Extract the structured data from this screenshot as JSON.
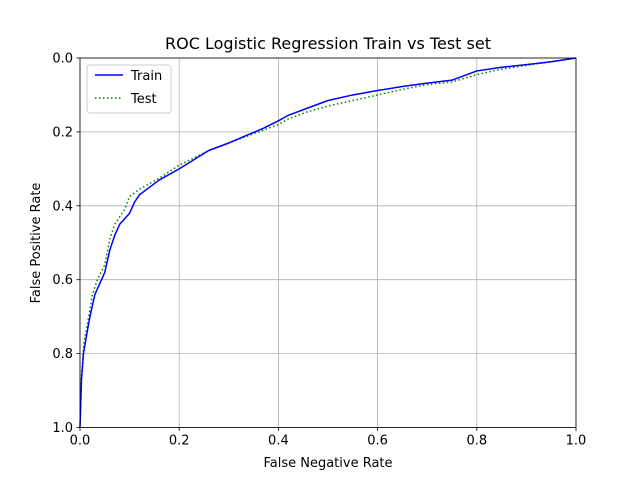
{
  "chart_data": {
    "type": "line",
    "title": "ROC Logistic Regression Train vs Test set",
    "xlabel": "False Negative Rate",
    "ylabel": "False Positive Rate",
    "xlim": [
      0,
      1
    ],
    "ylim": [
      0,
      1
    ],
    "y_inverted": true,
    "grid": true,
    "legend_position": "upper left",
    "x_ticks": [
      "0.0",
      "0.2",
      "0.4",
      "0.6",
      "0.8",
      "1.0"
    ],
    "y_ticks": [
      "0.0",
      "0.2",
      "0.4",
      "0.6",
      "0.8",
      "1.0"
    ],
    "series": [
      {
        "name": "Train",
        "color": "#0000ff",
        "style": "solid",
        "x": [
          0.0,
          0.003,
          0.007,
          0.012,
          0.02,
          0.03,
          0.04,
          0.05,
          0.06,
          0.07,
          0.08,
          0.09,
          0.1,
          0.11,
          0.12,
          0.14,
          0.16,
          0.2,
          0.26,
          0.3,
          0.37,
          0.4,
          0.42,
          0.46,
          0.5,
          0.55,
          0.6,
          0.65,
          0.7,
          0.75,
          0.8,
          0.85,
          0.9,
          0.95,
          1.0
        ],
        "y": [
          1.0,
          0.87,
          0.8,
          0.76,
          0.7,
          0.64,
          0.61,
          0.58,
          0.52,
          0.48,
          0.45,
          0.435,
          0.42,
          0.39,
          0.37,
          0.35,
          0.33,
          0.3,
          0.25,
          0.23,
          0.19,
          0.17,
          0.155,
          0.135,
          0.115,
          0.1,
          0.088,
          0.077,
          0.068,
          0.06,
          0.035,
          0.025,
          0.018,
          0.01,
          0.0
        ]
      },
      {
        "name": "Test",
        "color": "#008000",
        "style": "dotted",
        "x": [
          0.0,
          0.003,
          0.008,
          0.015,
          0.025,
          0.035,
          0.05,
          0.06,
          0.07,
          0.08,
          0.09,
          0.1,
          0.12,
          0.14,
          0.16,
          0.2,
          0.26,
          0.3,
          0.36,
          0.4,
          0.42,
          0.46,
          0.5,
          0.55,
          0.6,
          0.65,
          0.7,
          0.75,
          0.8,
          0.85,
          0.9,
          0.95,
          1.0
        ],
        "y": [
          1.0,
          0.86,
          0.77,
          0.72,
          0.64,
          0.6,
          0.56,
          0.49,
          0.45,
          0.43,
          0.41,
          0.375,
          0.355,
          0.34,
          0.325,
          0.29,
          0.25,
          0.23,
          0.2,
          0.18,
          0.165,
          0.145,
          0.13,
          0.115,
          0.1,
          0.085,
          0.072,
          0.065,
          0.045,
          0.03,
          0.02,
          0.01,
          0.0
        ]
      }
    ]
  }
}
